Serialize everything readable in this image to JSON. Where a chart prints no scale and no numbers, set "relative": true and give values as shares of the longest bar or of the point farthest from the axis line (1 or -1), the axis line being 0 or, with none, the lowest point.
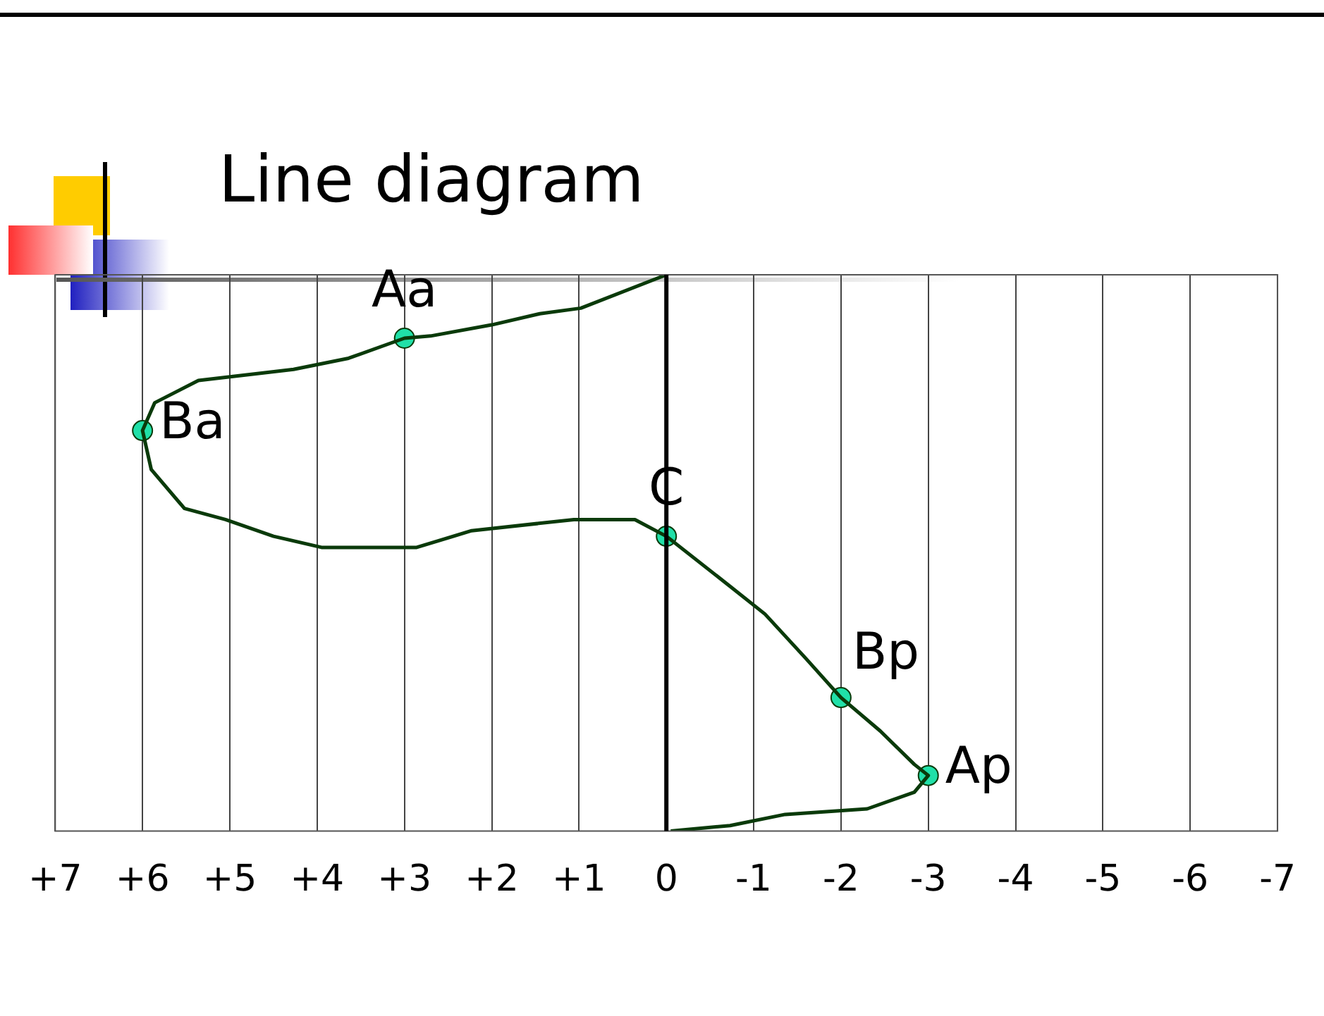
{
  "chart_data": {
    "type": "line",
    "title": "Line diagram",
    "relative": true,
    "tick_labels": "x",
    "grid": "x",
    "xlim": [
      7,
      -7
    ],
    "xticks": [
      {
        "value": 7,
        "label": "+7"
      },
      {
        "value": 6,
        "label": "+6"
      },
      {
        "value": 5,
        "label": "+5"
      },
      {
        "value": 4,
        "label": "+4"
      },
      {
        "value": 3,
        "label": "+3"
      },
      {
        "value": 2,
        "label": "+2"
      },
      {
        "value": 1,
        "label": "+1"
      },
      0,
      -1,
      -2,
      -3,
      -4,
      -5,
      -6,
      -7
    ],
    "ref_lines": [
      {
        "axis": "x",
        "value": 0,
        "color": "#000000"
      }
    ],
    "series": [
      {
        "type": "line",
        "color": "#0a3a0a",
        "marker": "none",
        "line_style": "solid",
        "x": [
          0,
          0.98,
          1.45,
          2.0,
          2.7,
          3,
          3.64,
          4.27,
          5.36,
          5.86,
          6,
          5.9,
          5.52,
          5.05,
          4.5,
          3.95,
          2.86,
          2.23,
          1.06,
          0.36,
          0,
          -0.73,
          -1.13,
          -1.6,
          -2,
          -2.45,
          -2.84,
          -3,
          -2.84,
          -2.3,
          -1.36,
          -0.73,
          -0.05
        ],
        "values": [
          1,
          0.94,
          0.93,
          0.91,
          0.89,
          0.886,
          0.85,
          0.83,
          0.81,
          0.77,
          0.72,
          0.65,
          0.58,
          0.56,
          0.53,
          0.51,
          0.51,
          0.54,
          0.56,
          0.56,
          0.53,
          0.44,
          0.39,
          0.31,
          0.24,
          0.18,
          0.12,
          0.1,
          0.07,
          0.04,
          0.03,
          0.01,
          0
        ]
      },
      {
        "type": "scatter",
        "color": "#20e0a8",
        "marker": "circle",
        "x": [
          3,
          6,
          0,
          -2,
          -3
        ],
        "values": [
          0.886,
          0.72,
          0.53,
          0.24,
          0.1
        ]
      }
    ],
    "annotations": [
      {
        "text": "Aa",
        "x": 3,
        "y": 0.886
      },
      {
        "text": "Ba",
        "x": 6,
        "y": 0.72
      },
      {
        "text": "C",
        "x": 0,
        "y": 0.53
      },
      {
        "text": "Bp",
        "x": -2,
        "y": 0.24
      },
      {
        "text": "Ap",
        "x": -3,
        "y": 0.1
      }
    ]
  }
}
